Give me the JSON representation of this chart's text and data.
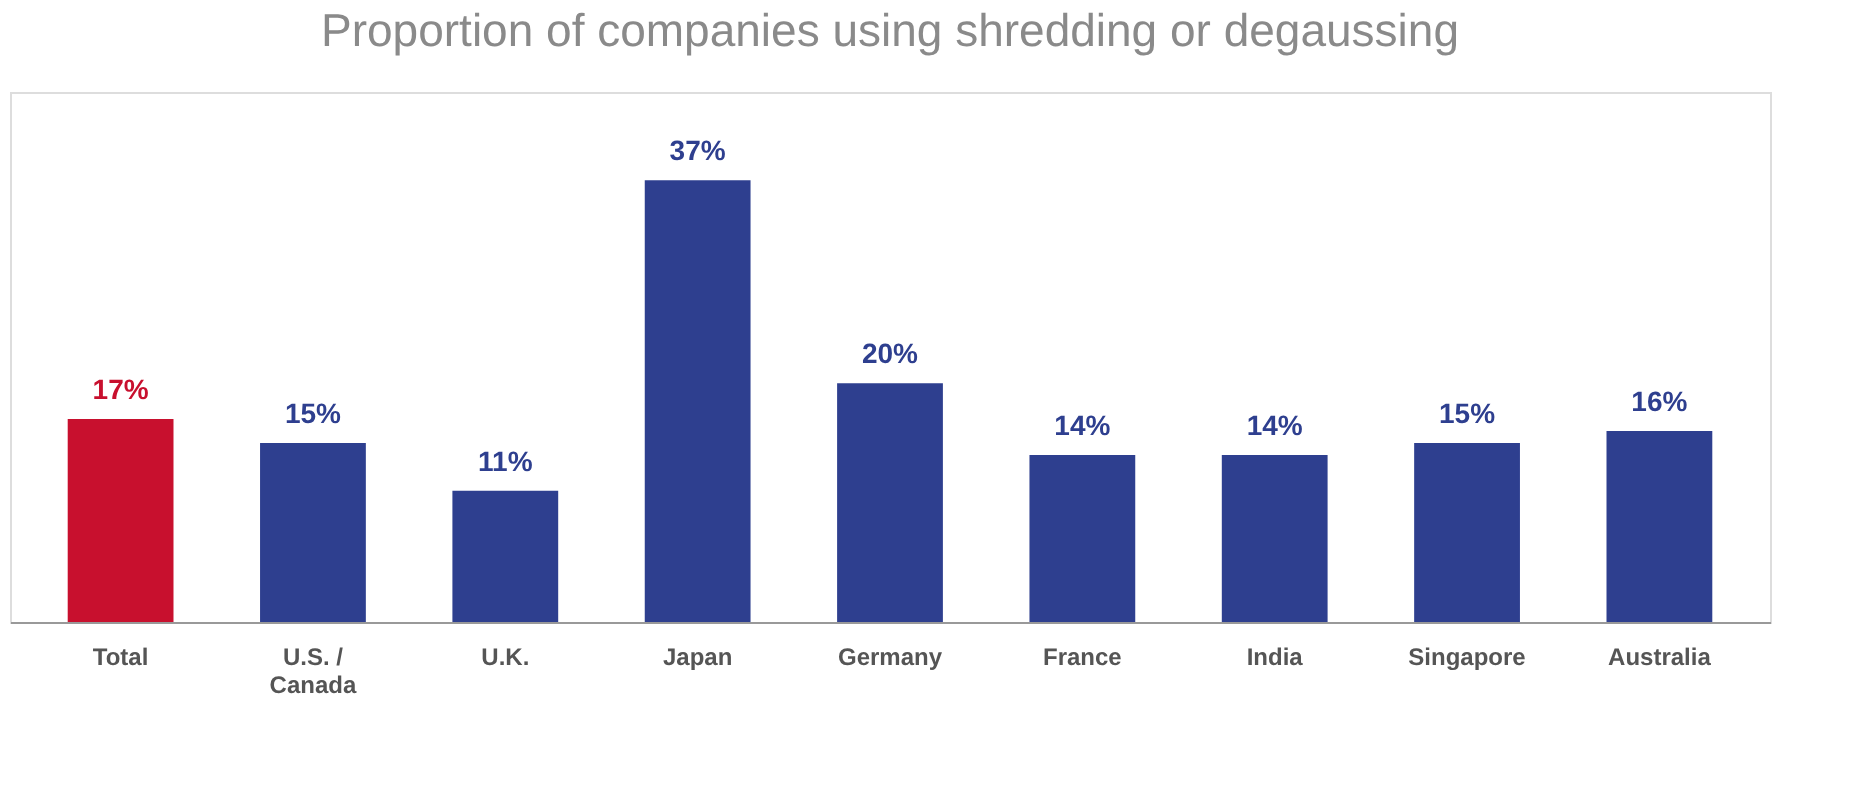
{
  "chart_data": {
    "type": "bar",
    "title": "Proportion of companies using shredding or degaussing",
    "categories": [
      "Total",
      "U.S. / Canada",
      "U.K.",
      "Japan",
      "Germany",
      "France",
      "India",
      "Singapore",
      "Australia"
    ],
    "values": [
      17,
      15,
      11,
      37,
      20,
      14,
      14,
      15,
      16
    ],
    "colors": [
      "#c8102e",
      "#2e3f8f",
      "#2e3f8f",
      "#2e3f8f",
      "#2e3f8f",
      "#2e3f8f",
      "#2e3f8f",
      "#2e3f8f",
      "#2e3f8f"
    ],
    "value_labels": [
      "17%",
      "15%",
      "11%",
      "37%",
      "20%",
      "14%",
      "14%",
      "15%",
      "16%"
    ],
    "grid": false,
    "tick_labels": "x"
  }
}
